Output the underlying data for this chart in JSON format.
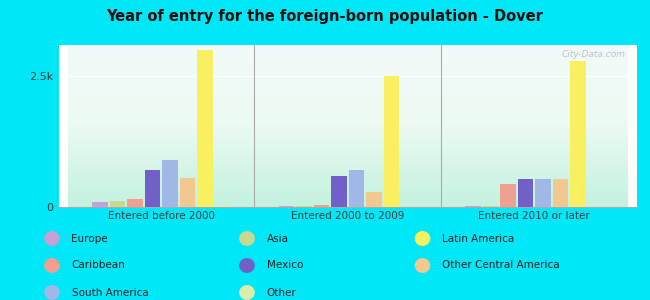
{
  "title": "Year of entry for the foreign-born population - Dover",
  "groups": [
    "Entered before 2000",
    "Entered 2000 to 2009",
    "Entered 2010 or later"
  ],
  "categories": [
    "Europe",
    "Asia",
    "Caribbean",
    "Mexico",
    "South America",
    "Other Central America",
    "Latin America",
    "Other"
  ],
  "values": {
    "Entered before 2000": [
      100,
      120,
      150,
      700,
      900,
      550,
      3000,
      15
    ],
    "Entered 2000 to 2009": [
      10,
      10,
      45,
      600,
      700,
      290,
      2500,
      5
    ],
    "Entered 2010 or later": [
      10,
      10,
      440,
      530,
      530,
      530,
      2800,
      5
    ]
  },
  "colors": {
    "Europe": "#c8a0d8",
    "Asia": "#c8d890",
    "Caribbean": "#f0a090",
    "Mexico": "#7060c8",
    "South America": "#a0b8e8",
    "Other Central America": "#f0c890",
    "Latin America": "#f8f060",
    "Other": "#d8eeaa"
  },
  "outer_background": "#00e8f8",
  "plot_bg_top": "#d8f8e8",
  "plot_bg_bottom": "#c8f8e0",
  "ylim": [
    0,
    3100
  ],
  "yticks": [
    0,
    2500
  ],
  "ytick_labels": [
    "0",
    "2.5k"
  ],
  "legend_cols": [
    [
      [
        "Europe",
        "#c8a0d8"
      ],
      [
        "Caribbean",
        "#f0a090"
      ],
      [
        "South America",
        "#a0b8e8"
      ]
    ],
    [
      [
        "Asia",
        "#c8d890"
      ],
      [
        "Mexico",
        "#7060c8"
      ],
      [
        "Other",
        "#d8eeaa"
      ]
    ],
    [
      [
        "Latin America",
        "#f8f060"
      ],
      [
        "Other Central America",
        "#f0c890"
      ]
    ]
  ]
}
